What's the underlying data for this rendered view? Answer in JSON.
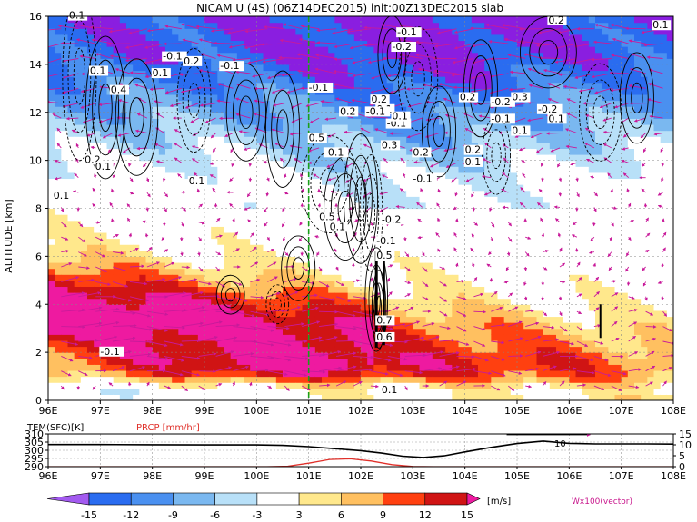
{
  "title": "NICAM U (4S) (06Z14DEC2015) init:00Z13DEC2015 slab",
  "colors": {
    "magenta": "#ee1aa0",
    "vector": "#c81a9a",
    "dashed_line": "#1aa01a",
    "temp_line": "#000000",
    "prcp_line": "#e0302a",
    "bins": [
      "#8a1ee0",
      "#a35af0",
      "#2a6cf0",
      "#4a90f0",
      "#7ab8f0",
      "#b8e0f8",
      "#ffffff",
      "#ffe88c",
      "#ffc060",
      "#ff8c20",
      "#ff4010",
      "#d01414",
      "#a00020",
      "#ee1aa0"
    ]
  },
  "chart_data": [
    {
      "type": "heatmap",
      "title": "NICAM U (4S) (06Z14DEC2015) init:00Z13DEC2015 slab",
      "xlabel": "",
      "ylabel": "ALTITUDE [km]",
      "xlim": [
        96,
        108
      ],
      "ylim": [
        0,
        16
      ],
      "x_ticks": [
        "96E",
        "97E",
        "98E",
        "99E",
        "100E",
        "101E",
        "102E",
        "103E",
        "104E",
        "105E",
        "106E",
        "107E",
        "108E"
      ],
      "y_ticks": [
        "0",
        "2",
        "4",
        "6",
        "8",
        "10",
        "12",
        "14",
        "16"
      ],
      "grid": true,
      "marker_line_x": 101,
      "contour_labels": [
        {
          "text": "0.1",
          "x": 96.4,
          "y": 15.9
        },
        {
          "text": "0.1",
          "x": 96.8,
          "y": 13.6
        },
        {
          "text": "0.4",
          "x": 97.2,
          "y": 12.8
        },
        {
          "text": "-0.1",
          "x": 98.2,
          "y": 14.2
        },
        {
          "text": "0.2",
          "x": 98.6,
          "y": 14.0
        },
        {
          "text": "0.1",
          "x": 98.0,
          "y": 13.5
        },
        {
          "text": "-0.1",
          "x": 99.3,
          "y": 13.8
        },
        {
          "text": "-0.1",
          "x": 101.0,
          "y": 12.9
        },
        {
          "text": "0.2",
          "x": 101.6,
          "y": 11.9
        },
        {
          "text": "0.2",
          "x": 102.2,
          "y": 12.4
        },
        {
          "text": "-0.1",
          "x": 102.5,
          "y": 11.4
        },
        {
          "text": "0.1",
          "x": 102.3,
          "y": 12.0
        },
        {
          "text": "0.1",
          "x": 102.6,
          "y": 11.7
        },
        {
          "text": "-0.1",
          "x": 102.1,
          "y": 11.9
        },
        {
          "text": "0.5",
          "x": 101.0,
          "y": 10.8
        },
        {
          "text": "-0.1",
          "x": 101.3,
          "y": 10.2
        },
        {
          "text": "0.3",
          "x": 102.4,
          "y": 10.5
        },
        {
          "text": "0.2",
          "x": 103.0,
          "y": 10.2
        },
        {
          "text": "0.2",
          "x": 104.0,
          "y": 10.3
        },
        {
          "text": "0.1",
          "x": 104.0,
          "y": 9.8
        },
        {
          "text": "-0.1",
          "x": 103.0,
          "y": 9.1
        },
        {
          "text": "-0.1",
          "x": 102.7,
          "y": 15.2
        },
        {
          "text": "-0.2",
          "x": 102.6,
          "y": 14.6
        },
        {
          "text": "0.2",
          "x": 105.6,
          "y": 15.7
        },
        {
          "text": "0.1",
          "x": 107.6,
          "y": 15.5
        },
        {
          "text": "0.2",
          "x": 103.9,
          "y": 12.5
        },
        {
          "text": "-0.2",
          "x": 104.5,
          "y": 12.3
        },
        {
          "text": "0.3",
          "x": 104.9,
          "y": 12.5
        },
        {
          "text": "-0.2",
          "x": 105.4,
          "y": 12.0
        },
        {
          "text": "-0.1",
          "x": 104.5,
          "y": 11.6
        },
        {
          "text": "0.1",
          "x": 104.9,
          "y": 11.1
        },
        {
          "text": "0.1",
          "x": 105.6,
          "y": 11.6
        },
        {
          "text": "0.2",
          "x": 96.7,
          "y": 9.9
        },
        {
          "text": "0.1",
          "x": 96.9,
          "y": 9.6
        },
        {
          "text": "0.1",
          "x": 98.7,
          "y": 9.0
        },
        {
          "text": "0.1",
          "x": 96.1,
          "y": 8.4
        },
        {
          "text": "0.5",
          "x": 101.2,
          "y": 7.5
        },
        {
          "text": "-0.2",
          "x": 102.4,
          "y": 7.4
        },
        {
          "text": "0.1",
          "x": 101.4,
          "y": 7.1
        },
        {
          "text": "-0.1",
          "x": 102.3,
          "y": 6.5
        },
        {
          "text": "0.5",
          "x": 102.3,
          "y": 5.9
        },
        {
          "text": "0.7",
          "x": 102.3,
          "y": 3.2
        },
        {
          "text": "0.6",
          "x": 102.3,
          "y": 2.5
        },
        {
          "text": "-0.1",
          "x": 97.0,
          "y": 1.9
        },
        {
          "text": "0.1",
          "x": 102.4,
          "y": 0.3
        }
      ]
    },
    {
      "type": "line",
      "title": "",
      "x_ticks": [
        "96E",
        "97E",
        "98E",
        "99E",
        "100E",
        "101E",
        "102E",
        "103E",
        "104E",
        "105E",
        "106E",
        "107E",
        "108E"
      ],
      "xlim": [
        96,
        108
      ],
      "left_axis": {
        "label": "TEM(SFC)[K]",
        "ticks": [
          "290",
          "295",
          "300",
          "305",
          "310"
        ],
        "lim": [
          290,
          310
        ]
      },
      "right_axis": {
        "label": "PRCP [mm/hr]",
        "ticks": [
          "0",
          "5",
          "10",
          "15"
        ],
        "lim": [
          0,
          15
        ]
      },
      "series": [
        {
          "name": "TEM(SFC)[K]",
          "axis": "left",
          "x": [
            96,
            97,
            98,
            99,
            100,
            100.5,
            101,
            101.5,
            102,
            102.4,
            102.8,
            103.2,
            103.6,
            104,
            104.5,
            105,
            105.5,
            106,
            106.5,
            107,
            107.5,
            108
          ],
          "y": [
            303.5,
            303.5,
            303.4,
            303.3,
            303.3,
            303.0,
            302.2,
            301.0,
            299.8,
            298.3,
            296.4,
            295.6,
            296.6,
            299.0,
            301.8,
            304.1,
            305.6,
            304.2,
            303.9,
            303.9,
            303.9,
            303.8
          ]
        },
        {
          "name": "PRCP [mm/hr]",
          "axis": "right",
          "x": [
            96,
            99,
            100.2,
            100.6,
            101.0,
            101.4,
            101.8,
            102.2,
            102.6,
            103.0,
            103.4,
            104,
            106,
            108
          ],
          "y": [
            0,
            0,
            0,
            0.2,
            1.6,
            3.3,
            3.6,
            2.6,
            0.9,
            0.1,
            0,
            0,
            0,
            0
          ]
        }
      ],
      "annotation": "10"
    }
  ],
  "legend": {
    "labels": [
      "-15",
      "-12",
      "-9",
      "-6",
      "-3",
      "3",
      "6",
      "9",
      "12",
      "15"
    ],
    "unit": "[m/s]",
    "vector_note": "Wx100(vector)"
  }
}
